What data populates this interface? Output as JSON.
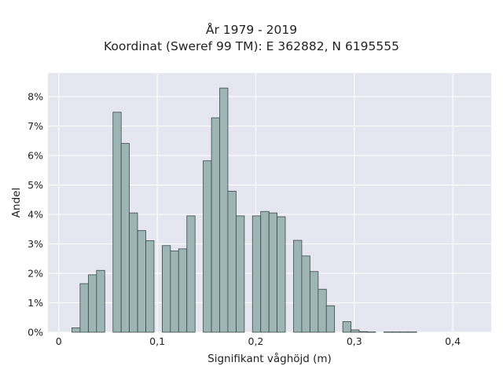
{
  "chart_data": {
    "type": "bar",
    "title": "År 1979 - 2019",
    "subtitle": "Koordinat (Sweref 99 TM): E 362882, N 6195555",
    "xlabel": "Signifikant våghöjd (m)",
    "ylabel": "Andel",
    "xlim": [
      -0.011,
      0.439
    ],
    "ylim": [
      0,
      0.088
    ],
    "bin_width": 0.00833,
    "grid": true,
    "xticks": [
      {
        "value": 0,
        "label": "0"
      },
      {
        "value": 0.1,
        "label": "0,1"
      },
      {
        "value": 0.2,
        "label": "0,2"
      },
      {
        "value": 0.3,
        "label": "0,3"
      },
      {
        "value": 0.4,
        "label": "0,4"
      }
    ],
    "yticks": [
      {
        "value": 0,
        "label": "0%"
      },
      {
        "value": 0.01,
        "label": "1%"
      },
      {
        "value": 0.02,
        "label": "2%"
      },
      {
        "value": 0.03,
        "label": "3%"
      },
      {
        "value": 0.04,
        "label": "4%"
      },
      {
        "value": 0.05,
        "label": "5%"
      },
      {
        "value": 0.06,
        "label": "6%"
      },
      {
        "value": 0.07,
        "label": "7%"
      },
      {
        "value": 0.08,
        "label": "8%"
      }
    ],
    "colors": {
      "bar_fill": "#9eb5b5",
      "bar_edge": "#3a4a4a",
      "plot_background": "#e6e6f0",
      "grid": "#ffffff"
    },
    "bins": [
      {
        "x": 0.0175,
        "y": 0.0015
      },
      {
        "x": 0.0258,
        "y": 0.0165
      },
      {
        "x": 0.0342,
        "y": 0.0195
      },
      {
        "x": 0.0425,
        "y": 0.021
      },
      {
        "x": 0.0592,
        "y": 0.0747
      },
      {
        "x": 0.0675,
        "y": 0.0641
      },
      {
        "x": 0.0758,
        "y": 0.0405
      },
      {
        "x": 0.0842,
        "y": 0.0345
      },
      {
        "x": 0.0925,
        "y": 0.0311
      },
      {
        "x": 0.1092,
        "y": 0.0294
      },
      {
        "x": 0.1175,
        "y": 0.0276
      },
      {
        "x": 0.1258,
        "y": 0.0283
      },
      {
        "x": 0.1342,
        "y": 0.0395
      },
      {
        "x": 0.1508,
        "y": 0.0582
      },
      {
        "x": 0.1592,
        "y": 0.0728
      },
      {
        "x": 0.1675,
        "y": 0.0829
      },
      {
        "x": 0.1758,
        "y": 0.0479
      },
      {
        "x": 0.1842,
        "y": 0.0395
      },
      {
        "x": 0.2008,
        "y": 0.0395
      },
      {
        "x": 0.2092,
        "y": 0.041
      },
      {
        "x": 0.2175,
        "y": 0.0405
      },
      {
        "x": 0.2258,
        "y": 0.0392
      },
      {
        "x": 0.2425,
        "y": 0.0312
      },
      {
        "x": 0.2508,
        "y": 0.0259
      },
      {
        "x": 0.2592,
        "y": 0.0206
      },
      {
        "x": 0.2675,
        "y": 0.0146
      },
      {
        "x": 0.2758,
        "y": 0.009
      },
      {
        "x": 0.2925,
        "y": 0.0036
      },
      {
        "x": 0.3008,
        "y": 0.0008
      },
      {
        "x": 0.3092,
        "y": 0.0002
      },
      {
        "x": 0.3175,
        "y": 0.0001
      },
      {
        "x": 0.3342,
        "y": 0.0001
      },
      {
        "x": 0.3425,
        "y": 0.0001
      },
      {
        "x": 0.3508,
        "y": 0.0001
      },
      {
        "x": 0.3592,
        "y": 0.0001
      }
    ]
  }
}
